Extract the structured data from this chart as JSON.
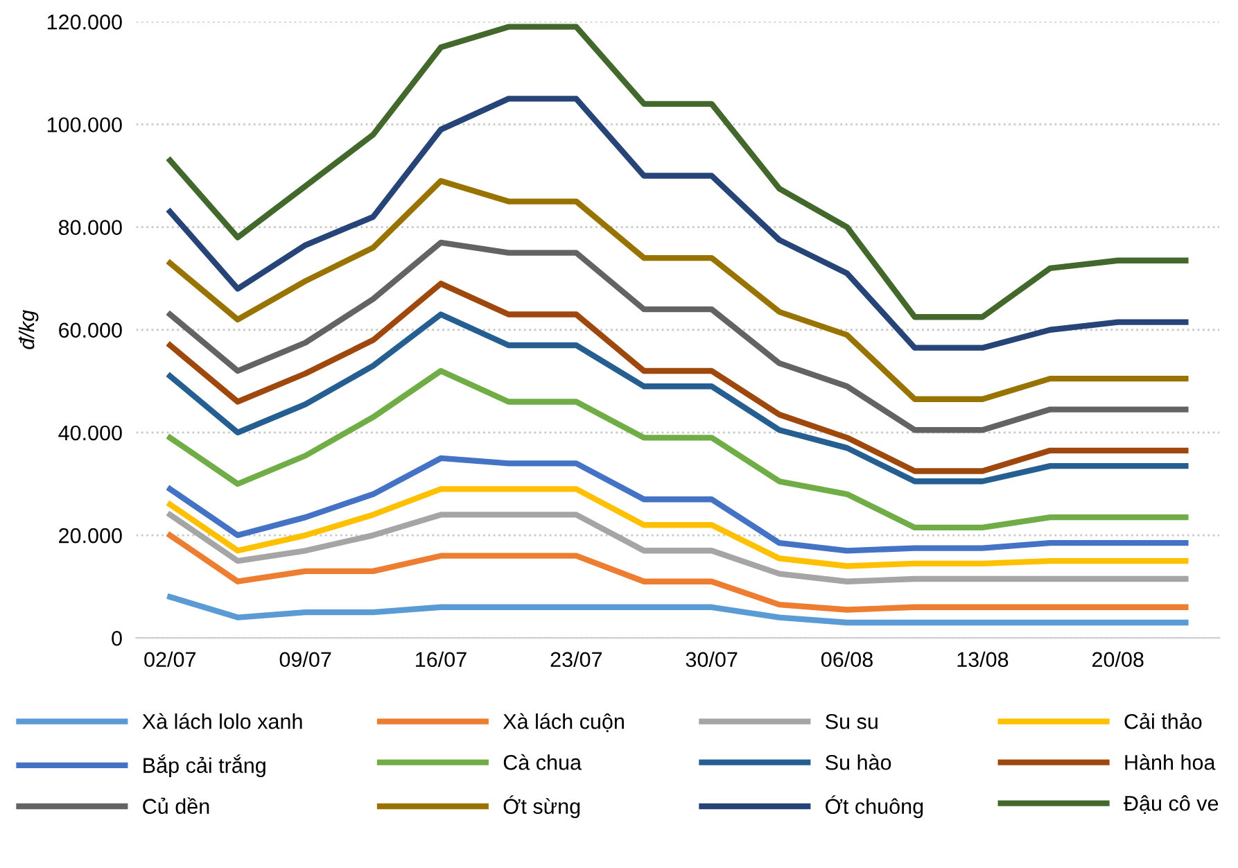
{
  "chart_data": {
    "type": "line",
    "ylabel": "đ/kg",
    "categories": [
      "02/07",
      null,
      "09/07",
      null,
      "16/07",
      null,
      "23/07",
      null,
      "30/07",
      null,
      "06/08",
      null,
      "13/08",
      null,
      "20/08",
      null
    ],
    "ylim": [
      0,
      120000
    ],
    "yticks": [
      0,
      {
        "value": 20000,
        "label": "20.000"
      },
      {
        "value": 40000,
        "label": "40.000"
      },
      {
        "value": 60000,
        "label": "60.000"
      },
      {
        "value": 80000,
        "label": "80.000"
      },
      {
        "value": 100000,
        "label": "100.000"
      },
      {
        "value": 120000,
        "label": "120.000"
      }
    ],
    "grid": "y",
    "legend": "bottom",
    "marker": "none",
    "line_style": "solid",
    "series": [
      {
        "name": "Xà lách lolo xanh",
        "color": "#5b9bd5",
        "values": [
          8000,
          4000,
          5000,
          5000,
          6000,
          6000,
          6000,
          6000,
          6000,
          4000,
          3000,
          3000,
          3000,
          3000,
          3000,
          3000
        ]
      },
      {
        "name": "Xà lách cuộn",
        "color": "#ed7d31",
        "values": [
          20000,
          11000,
          13000,
          13000,
          16000,
          16000,
          16000,
          11000,
          11000,
          6500,
          5500,
          6000,
          6000,
          6000,
          6000,
          6000
        ]
      },
      {
        "name": "Su su",
        "color": "#a5a5a5",
        "values": [
          24000,
          15000,
          17000,
          20000,
          24000,
          24000,
          24000,
          17000,
          17000,
          12500,
          11000,
          11500,
          11500,
          11500,
          11500,
          11500
        ]
      },
      {
        "name": "Cải thảo",
        "color": "#ffc000",
        "values": [
          26000,
          17000,
          20000,
          24000,
          29000,
          29000,
          29000,
          22000,
          22000,
          15500,
          14000,
          14500,
          14500,
          15000,
          15000,
          15000
        ]
      },
      {
        "name": "Bắp cải trắng",
        "color": "#4472c4",
        "values": [
          29000,
          20000,
          23500,
          28000,
          35000,
          34000,
          34000,
          27000,
          27000,
          18500,
          17000,
          17500,
          17500,
          18500,
          18500,
          18500
        ]
      },
      {
        "name": "Cà chua",
        "color": "#70ad47",
        "values": [
          39000,
          30000,
          35500,
          43000,
          52000,
          46000,
          46000,
          39000,
          39000,
          30500,
          28000,
          21500,
          21500,
          23500,
          23500,
          23500
        ]
      },
      {
        "name": "Su hào",
        "color": "#255e91",
        "values": [
          51000,
          40000,
          45500,
          53000,
          63000,
          57000,
          57000,
          49000,
          49000,
          40500,
          37000,
          30500,
          30500,
          33500,
          33500,
          33500
        ]
      },
      {
        "name": "Hành hoa",
        "color": "#9e480e",
        "values": [
          57000,
          46000,
          51500,
          58000,
          69000,
          63000,
          63000,
          52000,
          52000,
          43500,
          39000,
          32500,
          32500,
          36500,
          36500,
          36500
        ]
      },
      {
        "name": "Củ dền",
        "color": "#636363",
        "values": [
          63000,
          52000,
          57500,
          66000,
          77000,
          75000,
          75000,
          64000,
          64000,
          53500,
          49000,
          40500,
          40500,
          44500,
          44500,
          44500
        ]
      },
      {
        "name": "Ớt sừng",
        "color": "#997300",
        "values": [
          73000,
          62000,
          69500,
          76000,
          89000,
          85000,
          85000,
          74000,
          74000,
          63500,
          59000,
          46500,
          46500,
          50500,
          50500,
          50500
        ]
      },
      {
        "name": "Ớt chuông",
        "color": "#264478",
        "values": [
          83000,
          68000,
          76500,
          82000,
          99000,
          105000,
          105000,
          90000,
          90000,
          77500,
          71000,
          56500,
          56500,
          60000,
          61500,
          61500
        ]
      },
      {
        "name": "Đậu cô ve",
        "color": "#43682b",
        "values": [
          93000,
          78000,
          88000,
          98000,
          115000,
          119000,
          119000,
          104000,
          104000,
          87500,
          80000,
          62500,
          62500,
          72000,
          73500,
          73500
        ]
      }
    ]
  }
}
